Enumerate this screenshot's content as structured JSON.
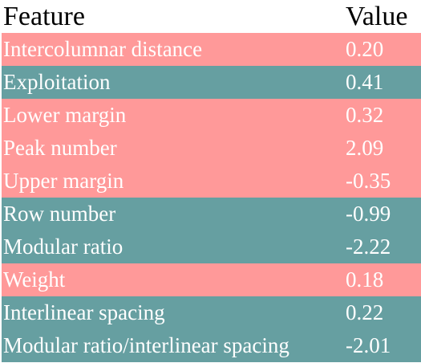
{
  "table": {
    "headers": {
      "feature": "Feature",
      "value": "Value"
    },
    "colors": {
      "group_a": "#ff9999",
      "group_b": "#669fa1"
    },
    "rows": [
      {
        "feature": "Intercolumnar distance",
        "value": "0.20",
        "group": "group_a"
      },
      {
        "feature": "Exploitation",
        "value": "0.41",
        "group": "group_b"
      },
      {
        "feature": "Lower margin",
        "value": "0.32",
        "group": "group_a"
      },
      {
        "feature": "Peak number",
        "value": "2.09",
        "group": "group_a"
      },
      {
        "feature": "Upper margin",
        "value": "-0.35",
        "group": "group_a"
      },
      {
        "feature": "Row number",
        "value": "-0.99",
        "group": "group_b"
      },
      {
        "feature": "Modular ratio",
        "value": "-2.22",
        "group": "group_b"
      },
      {
        "feature": "Weight",
        "value": "0.18",
        "group": "group_a"
      },
      {
        "feature": "Interlinear spacing",
        "value": "0.22",
        "group": "group_b"
      },
      {
        "feature": "Modular ratio/interlinear spacing",
        "value": "-2.01",
        "group": "group_b"
      }
    ]
  }
}
